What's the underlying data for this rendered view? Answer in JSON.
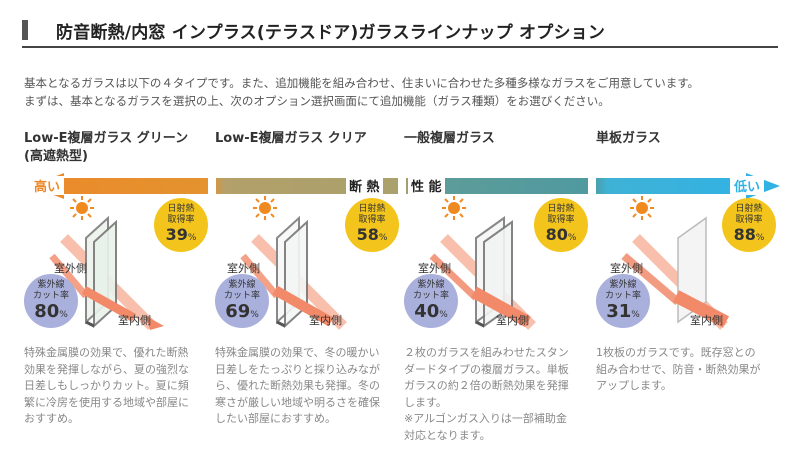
{
  "header": {
    "title": "防音断熱/内窓 インプラス(テラスドア)ガラスラインナップ オプション"
  },
  "intro": {
    "line1": "基本となるガラスは以下の４タイプです。また、追加機能を組み合わせ、住まいに合わせた多種多様なガラスをご用意しています。",
    "line2": "まずは、基本となるガラスを選択の上、次のオプション選択画面にて追加機能（ガラス種類）をお選びください。"
  },
  "scale": {
    "high": "高い",
    "low": "低い",
    "insulation": "断 熱",
    "performance": "性 能"
  },
  "labels": {
    "outdoor": "室外側",
    "indoor": "室内側"
  },
  "glass_types": [
    {
      "name_line1": "Low-E複層ガラス グリーン",
      "name_line2": "(高遮熱型)",
      "solar_label1": "日射熱",
      "solar_label2": "取得率",
      "solar_value": "39",
      "uv_label1": "紫外線",
      "uv_label2": "カット率",
      "uv_value": "80",
      "desc": [
        "特殊金属膜の効果で、優れた断熱",
        "効果を発揮しながら、夏の強烈な",
        "日差しもしっかりカット。夏に頻",
        "繁に冷房を使用する地域や部屋に",
        "おすすめ。"
      ]
    },
    {
      "name_line1": "Low-E複層ガラス クリア",
      "name_line2": "",
      "solar_label1": "日射熱",
      "solar_label2": "取得率",
      "solar_value": "58",
      "uv_label1": "紫外線",
      "uv_label2": "カット率",
      "uv_value": "69",
      "desc": [
        "特殊金属膜の効果で、冬の暖かい",
        "日差しをたっぷりと採り込みなが",
        "ら、優れた断熱効果も発揮。冬の",
        "寒さが厳しい地域や明るさを確保",
        "したい部屋におすすめ。"
      ]
    },
    {
      "name_line1": "一般複層ガラス",
      "name_line2": "",
      "solar_label1": "日射熱",
      "solar_label2": "取得率",
      "solar_value": "80",
      "uv_label1": "紫外線",
      "uv_label2": "カット率",
      "uv_value": "40",
      "desc": [
        "２枚のガラスを組みわせたスタン",
        "ダードタイプの複層ガラス。単板",
        "ガラスの約２倍の断熱効果を発揮",
        "します。",
        "※アルゴンガス入りは一部補助金",
        "対応となります。"
      ]
    },
    {
      "name_line1": "単板ガラス",
      "name_line2": "",
      "solar_label1": "日射熱",
      "solar_label2": "取得率",
      "solar_value": "88",
      "uv_label1": "紫外線",
      "uv_label2": "カット率",
      "uv_value": "31",
      "desc": [
        "1枚板のガラスです。既存窓との",
        "組み合わせで、防音・断熱効果が",
        "アップします。"
      ]
    }
  ],
  "colors": {
    "accent_orange": "#ec8a2a",
    "band_olive": "#b3a06a",
    "band_teal": "#4f9aa0",
    "accent_blue": "#2fb2e6",
    "solar_badge": "#f3c51c",
    "uv_badge": "#aab0dc",
    "ray": "#f28a6a"
  },
  "icons": [
    "sun-icon",
    "window-glass-icon",
    "ray-arrow-icon"
  ]
}
